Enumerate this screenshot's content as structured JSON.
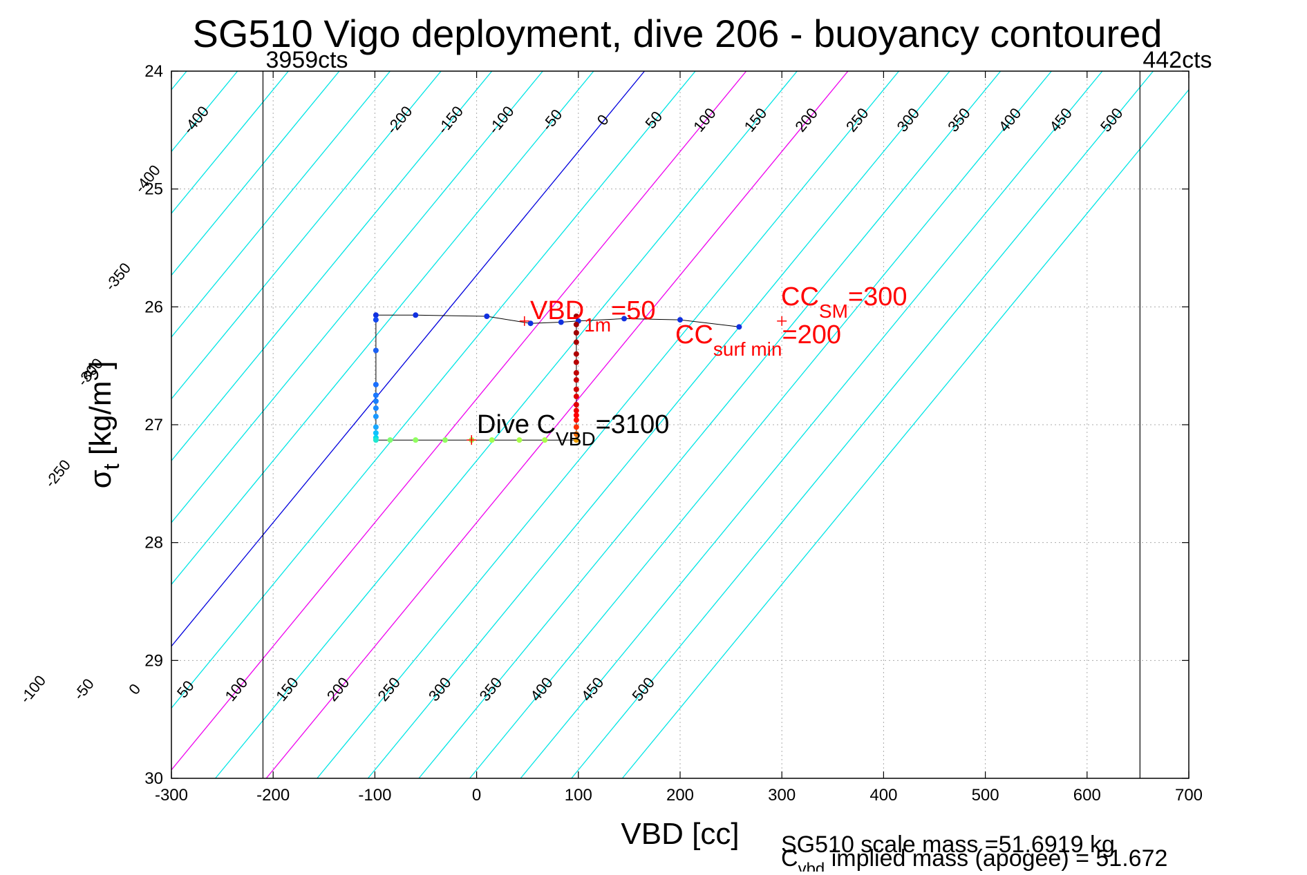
{
  "chart_data": {
    "type": "scatter",
    "title": "SG510 Vigo deployment, dive 206 - buoyancy contoured",
    "xlabel": "VBD [cc]",
    "ylabel_main": "σ",
    "ylabel_sub": "t",
    "ylabel_rest": " [kg/m",
    "ylabel_sup": "3",
    "ylabel_close": "]",
    "xlim": [
      -300,
      700
    ],
    "ylim": [
      24,
      30
    ],
    "y_reversed": true,
    "grid": true,
    "x_ticks": [
      "-300",
      "-200",
      "-100",
      "0",
      "100",
      "200",
      "300",
      "400",
      "500",
      "600",
      "700"
    ],
    "y_ticks": [
      "24",
      "25",
      "26",
      "27",
      "28",
      "29",
      "30"
    ],
    "contour_levels": [
      -450,
      -400,
      -350,
      -300,
      -250,
      -200,
      -150,
      -100,
      -50,
      0,
      50,
      100,
      150,
      200,
      250,
      300,
      350,
      400,
      450,
      500,
      550
    ],
    "contour_slope_cc_per_sigma": 95.3,
    "contour_zero_at_sigma24": 165,
    "contour_colors": {
      "default": "#00e5e5",
      "zero": "#0000dd",
      "highlight": "#ee00ee"
    },
    "highlight_levels": [
      100,
      200
    ],
    "top_contour_labels": [
      "-400",
      "-200",
      "-150",
      "-100",
      "-50",
      "0",
      "50",
      "100",
      "150",
      "200",
      "250",
      "300",
      "350",
      "400",
      "450",
      "500"
    ],
    "left_contour_labels": [
      "-400",
      "-350",
      "-300",
      "-250"
    ],
    "bottom_contour_labels": [
      "-150",
      "-100",
      "-50",
      "0",
      "50",
      "100",
      "150",
      "200",
      "250",
      "300",
      "350",
      "400",
      "450",
      "500"
    ],
    "limit_lines": [
      {
        "vbd": -210,
        "label": "3959cts"
      },
      {
        "vbd": 652,
        "label": "442cts"
      }
    ],
    "dive_trace": [
      {
        "vbd": 258,
        "sigma": 26.17,
        "color": "#1030e0"
      },
      {
        "vbd": 200,
        "sigma": 26.11,
        "color": "#1030e0"
      },
      {
        "vbd": 145,
        "sigma": 26.1,
        "color": "#1030e0"
      },
      {
        "vbd": 100,
        "sigma": 26.12,
        "color": "#1030e0"
      },
      {
        "vbd": 83,
        "sigma": 26.13,
        "color": "#1030e0"
      },
      {
        "vbd": 53,
        "sigma": 26.14,
        "color": "#1030e0"
      },
      {
        "vbd": 10,
        "sigma": 26.08,
        "color": "#1030e0"
      },
      {
        "vbd": -60,
        "sigma": 26.07,
        "color": "#1030e0"
      },
      {
        "vbd": -99,
        "sigma": 26.07,
        "color": "#1030e0"
      },
      {
        "vbd": -99,
        "sigma": 26.11,
        "color": "#1448f0"
      },
      {
        "vbd": -99,
        "sigma": 26.37,
        "color": "#1a60f5"
      },
      {
        "vbd": -99,
        "sigma": 26.66,
        "color": "#1a70ff"
      },
      {
        "vbd": -99,
        "sigma": 26.75,
        "color": "#1a78ff"
      },
      {
        "vbd": -99,
        "sigma": 26.8,
        "color": "#1a80ff"
      },
      {
        "vbd": -99,
        "sigma": 26.86,
        "color": "#1a88ff"
      },
      {
        "vbd": -99,
        "sigma": 26.93,
        "color": "#1a98ff"
      },
      {
        "vbd": -99,
        "sigma": 27.02,
        "color": "#1aa8ff"
      },
      {
        "vbd": -99,
        "sigma": 27.07,
        "color": "#10c0ff"
      },
      {
        "vbd": -99,
        "sigma": 27.11,
        "color": "#00d8f0"
      },
      {
        "vbd": -99,
        "sigma": 27.13,
        "color": "#20e8d0"
      },
      {
        "vbd": -85,
        "sigma": 27.13,
        "color": "#80ff70"
      },
      {
        "vbd": -60,
        "sigma": 27.13,
        "color": "#90ff60"
      },
      {
        "vbd": -31,
        "sigma": 27.13,
        "color": "#90ff60"
      },
      {
        "vbd": -5,
        "sigma": 27.13,
        "color": "#a0ff50"
      },
      {
        "vbd": 15,
        "sigma": 27.13,
        "color": "#a0ff50"
      },
      {
        "vbd": 42,
        "sigma": 27.13,
        "color": "#a8ff48"
      },
      {
        "vbd": 67,
        "sigma": 27.13,
        "color": "#a8ff48"
      },
      {
        "vbd": 98,
        "sigma": 27.13,
        "color": "#f0a000"
      },
      {
        "vbd": 98,
        "sigma": 27.08,
        "color": "#ff7000"
      },
      {
        "vbd": 98,
        "sigma": 27.02,
        "color": "#ff3000"
      },
      {
        "vbd": 98,
        "sigma": 26.96,
        "color": "#ff1000"
      },
      {
        "vbd": 98,
        "sigma": 26.92,
        "color": "#ff0000"
      },
      {
        "vbd": 98,
        "sigma": 26.88,
        "color": "#f00000"
      },
      {
        "vbd": 98,
        "sigma": 26.83,
        "color": "#e00000"
      },
      {
        "vbd": 98,
        "sigma": 26.76,
        "color": "#e00000"
      },
      {
        "vbd": 98,
        "sigma": 26.7,
        "color": "#d00000"
      },
      {
        "vbd": 98,
        "sigma": 26.62,
        "color": "#c80000"
      },
      {
        "vbd": 98,
        "sigma": 26.56,
        "color": "#c00000"
      },
      {
        "vbd": 98,
        "sigma": 26.47,
        "color": "#b80000"
      },
      {
        "vbd": 98,
        "sigma": 26.4,
        "color": "#b00000"
      },
      {
        "vbd": 98,
        "sigma": 26.3,
        "color": "#a80000"
      },
      {
        "vbd": 98,
        "sigma": 26.22,
        "color": "#a00000"
      },
      {
        "vbd": 98,
        "sigma": 26.15,
        "color": "#a00000"
      },
      {
        "vbd": 98,
        "sigma": 26.08,
        "color": "#a00000"
      }
    ],
    "markers": [
      {
        "vbd": 47,
        "sigma": 26.12
      },
      {
        "vbd": 300,
        "sigma": 26.12
      },
      {
        "vbd": -5,
        "sigma": 27.13
      }
    ],
    "annotations": {
      "vbd1m": {
        "main": "VBD",
        "sub": "1m",
        "rest": "=50"
      },
      "cc_sm": {
        "main": "CC",
        "sub": "SM",
        "rest": "=300"
      },
      "cc_surf": {
        "main": "CC",
        "sub": "surf min",
        "rest": "=200"
      },
      "dive_c": {
        "main": "Dive C",
        "sub": "VBD",
        "rest": "=3100"
      }
    },
    "footer": {
      "scale_mass": "SG510 scale mass =51.6919 kg",
      "implied_main": "C",
      "implied_sub": "vbd",
      "implied_rest": " implied mass (apogee) = 51.672"
    }
  }
}
